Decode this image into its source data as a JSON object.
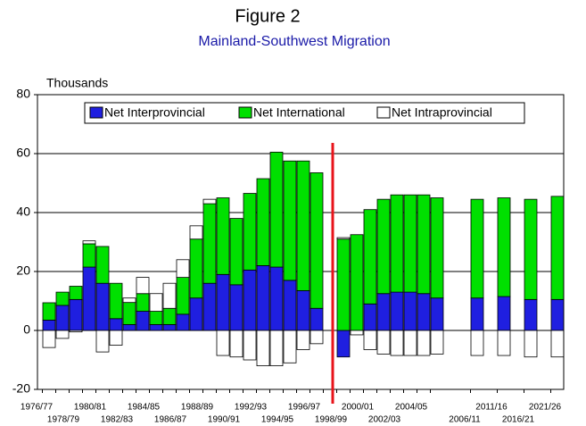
{
  "chart_data": {
    "type": "bar",
    "stacked": true,
    "title": "Figure 2",
    "subtitle": "Mainland-Southwest Migration",
    "y_label": "Thousands",
    "categories": [
      "1976/77",
      null,
      "1978/79",
      null,
      "1980/81",
      null,
      "1982/83",
      null,
      "1984/85",
      null,
      "1986/87",
      null,
      "1988/89",
      null,
      "1990/91",
      null,
      "1992/93",
      null,
      "1994/95",
      null,
      "1996/97",
      null,
      "1998/99",
      null,
      "2000/01",
      null,
      "2002/03",
      null,
      "2004/05",
      null,
      "2006/11",
      "2011/16",
      "2016/21",
      "2021/26"
    ],
    "series": [
      {
        "name": "Net Interprovincial",
        "color": "#1f1fe0",
        "values": [
          3.5,
          8.5,
          10.5,
          21.5,
          16,
          4,
          2,
          6.5,
          2,
          2,
          5.5,
          11,
          16,
          19,
          15.5,
          20.5,
          22,
          21.5,
          17,
          13.5,
          7.5,
          null,
          -9,
          0,
          9,
          12.5,
          13,
          13,
          12.5,
          11,
          11,
          11.5,
          10.5,
          10.5
        ]
      },
      {
        "name": "Net International",
        "color": "#00e000",
        "values": [
          5.9,
          4.5,
          4.5,
          7.9,
          12.5,
          12,
          7.5,
          6,
          4.5,
          5.5,
          12.5,
          20,
          27,
          26,
          22.5,
          26,
          29.5,
          39,
          40.5,
          44,
          46,
          null,
          31,
          32.5,
          32,
          32,
          33,
          33,
          33.5,
          34,
          33.5,
          33.5,
          34,
          35
        ]
      },
      {
        "name": "Net Intraprovincial",
        "color": "#ffffff",
        "values": [
          -5.8,
          -2.7,
          -0.5,
          1,
          -7.3,
          -5,
          1.5,
          5.5,
          6,
          8.5,
          6,
          4.5,
          1.5,
          -8.5,
          -9,
          -10,
          -12,
          -12,
          -11,
          -6.5,
          -4.5,
          null,
          0.5,
          -1.5,
          -6.5,
          -8,
          -8.5,
          -8.5,
          -8.5,
          -8,
          -8.5,
          -8.5,
          -9,
          -9
        ]
      }
    ],
    "ylim": [
      -20,
      80
    ],
    "yticks": [
      -20,
      0,
      20,
      40,
      60,
      80
    ],
    "grid": true
  }
}
